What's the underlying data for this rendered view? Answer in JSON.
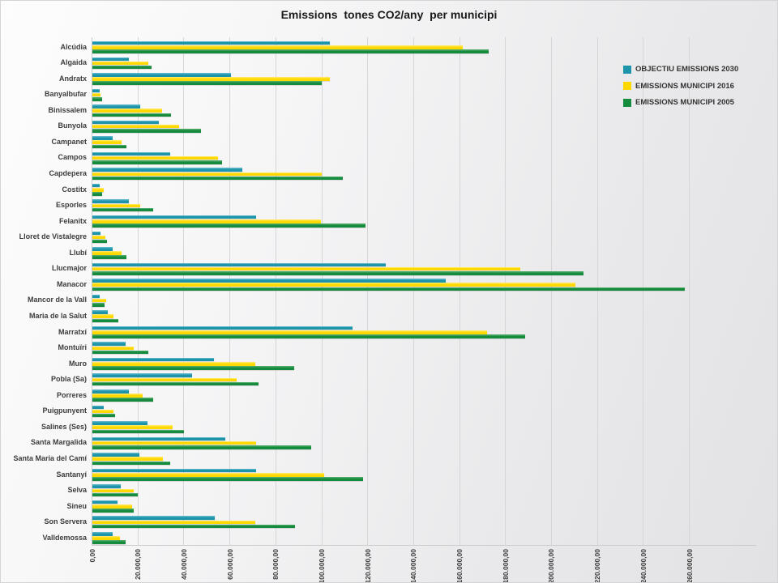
{
  "chart_data": {
    "type": "bar",
    "orientation": "horizontal",
    "title": "Emissions  tones CO2/any  per municipi",
    "grid": true,
    "legend_position": "top-right",
    "categories": [
      "Alcúdia",
      "Algaida",
      "Andratx",
      "Banyalbufar",
      "Binissalem",
      "Bunyola",
      "Campanet",
      "Campos",
      "Capdepera",
      "Costitx",
      "Esporles",
      "Felanitx",
      "Lloret de Vistalegre",
      "Llubí",
      "Llucmajor",
      "Manacor",
      "Mancor de la Vall",
      "Maria de la Salut",
      "Marratxí",
      "Montuïri",
      "Muro",
      "Pobla (Sa)",
      "Porreres",
      "Puigpunyent",
      "Salines (Ses)",
      "Santa Margalida",
      "Santa Maria del Camí",
      "Santanyí",
      "Selva",
      "Sineu",
      "Son Servera",
      "Valldemossa"
    ],
    "series": [
      {
        "key": "objectiu-2030",
        "name": "OBJECTIU EMISSIONS 2030",
        "color": "#1D94AA",
        "color_light": "#5CB6C9",
        "values": [
          103500,
          16000,
          60500,
          3400,
          21000,
          29000,
          9000,
          34000,
          65500,
          3400,
          16000,
          71500,
          3700,
          9000,
          128000,
          154000,
          3400,
          7000,
          113500,
          14500,
          53000,
          43500,
          16000,
          5000,
          24000,
          58000,
          20500,
          71500,
          12500,
          11000,
          53500,
          9000
        ]
      },
      {
        "key": "municipi-2016",
        "name": "EMISSIONS MUNICIPI 2016",
        "color": "#FFD800",
        "color_light": "#FFE85C",
        "values": [
          161500,
          24500,
          103500,
          3700,
          30500,
          38000,
          12800,
          55000,
          100000,
          5000,
          21000,
          99500,
          5900,
          13000,
          186500,
          210500,
          6000,
          9400,
          172000,
          18000,
          71000,
          63000,
          22000,
          9200,
          35000,
          71500,
          31000,
          101000,
          18000,
          17500,
          71000,
          12300
        ]
      },
      {
        "key": "municipi-2005",
        "name": "EMISSIONS MUNICIPI 2005",
        "color": "#148B3D",
        "color_light": "#4FAA66",
        "values": [
          172500,
          26000,
          100000,
          4500,
          34500,
          47500,
          14800,
          56500,
          109000,
          4500,
          26500,
          119000,
          6500,
          15000,
          214000,
          258000,
          5500,
          11500,
          188500,
          24500,
          88000,
          72500,
          26500,
          10000,
          40000,
          95500,
          34000,
          118000,
          20000,
          18000,
          88500,
          14700
        ]
      }
    ],
    "x_axis": {
      "min": 0,
      "max": 260000,
      "tick_step": 20000,
      "tick_labels": [
        "0,00",
        "20.000,00",
        "40.000,00",
        "60.000,00",
        "80.000,00",
        "100.000,00",
        "120.000,00",
        "140.000,00",
        "160.000,00",
        "180.000,00",
        "200.000,00",
        "220.000,00",
        "240.000,00",
        "260.000,00"
      ]
    }
  }
}
